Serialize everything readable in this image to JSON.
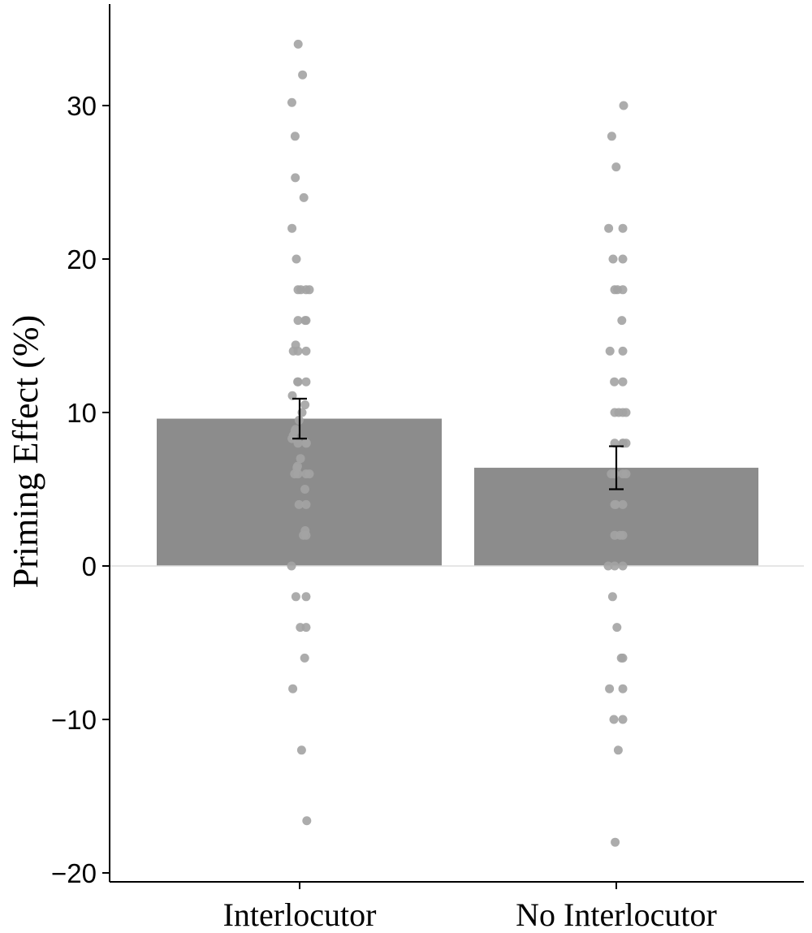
{
  "chart_data": {
    "type": "bar",
    "title": "",
    "xlabel": "",
    "ylabel": "Priming Effect (%)",
    "ylim": [
      -20,
      35
    ],
    "yticks": [
      -20,
      -10,
      0,
      10,
      20,
      30
    ],
    "ytick_labels": [
      "−20",
      "−10",
      "0",
      "10",
      "20",
      "30"
    ],
    "categories": [
      "Interlocutor",
      "No Interlocutor"
    ],
    "values": [
      9.6,
      6.4
    ],
    "error": [
      {
        "low": 8.3,
        "high": 10.9
      },
      {
        "low": 5.0,
        "high": 7.8
      }
    ],
    "grid": false,
    "colors": {
      "bar": "#8c8c8c",
      "point": "#a3a3a3",
      "errorbar": "#000000",
      "axis": "#000000",
      "zero_line": "#dedede"
    },
    "points": [
      [
        34,
        32,
        30.2,
        28,
        25.3,
        24,
        22,
        20,
        18,
        18,
        18,
        18,
        16,
        16,
        16,
        14.4,
        14,
        14,
        14,
        12,
        12,
        12,
        11.1,
        10.5,
        10,
        9.5,
        8.9,
        8.8,
        8.5,
        8.3,
        8,
        8,
        8,
        7,
        6.5,
        6.4,
        6,
        6,
        6,
        6,
        5,
        4,
        4,
        2.3,
        2,
        2,
        0,
        -2,
        -2,
        -4,
        -4,
        -6,
        -8,
        -12,
        -16.6
      ],
      [
        30,
        28,
        26,
        22,
        22,
        20,
        20,
        18,
        18,
        18,
        16,
        14,
        14,
        12,
        12,
        10,
        10,
        10,
        10,
        8,
        8,
        8,
        8,
        6,
        6,
        6,
        6,
        4,
        4,
        4,
        2,
        2,
        2,
        0,
        0,
        0,
        -2,
        -4,
        -6,
        -6,
        -8,
        -8,
        -10,
        -10,
        -12,
        -18
      ]
    ]
  }
}
